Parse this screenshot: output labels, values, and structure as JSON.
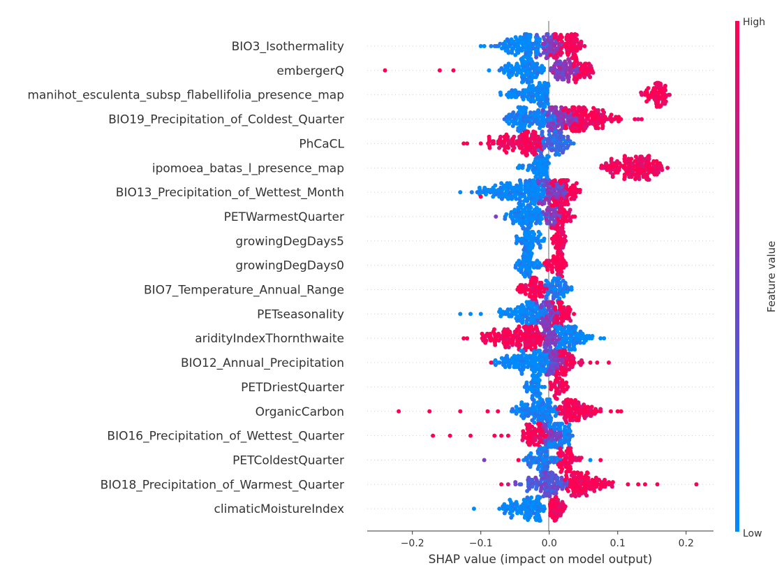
{
  "chart_data": {
    "type": "scatter",
    "subtype": "beeswarm",
    "xlabel": "SHAP value (impact on model output)",
    "xlim": [
      -0.266,
      0.24
    ],
    "xticks": [
      -0.2,
      -0.1,
      0.0,
      0.1,
      0.2
    ],
    "xtick_labels": [
      "−0.2",
      "−0.1",
      "0.0",
      "0.1",
      "0.2"
    ],
    "grid": "dotted horizontal row lines",
    "colorbar": {
      "label": "Feature value",
      "high_label": "High",
      "low_label": "Low",
      "low_color": "#008bfb",
      "mid_color": "#7c3fc4",
      "high_color": "#ff0052",
      "placement": "right"
    },
    "features": [
      {
        "name": "BIO3_Isothermality",
        "segments": [
          [
            -0.08,
            0.0,
            0,
            -0.04
          ],
          [
            -0.02,
            0.02,
            0.5,
            0.0
          ],
          [
            0.0,
            0.055,
            1,
            0.025
          ]
        ],
        "outliers": [
          [
            -0.1,
            0
          ],
          [
            -0.095,
            0
          ],
          [
            -0.085,
            0.1
          ]
        ]
      },
      {
        "name": "embergerQ",
        "segments": [
          [
            -0.08,
            -0.005,
            0,
            -0.03
          ],
          [
            0.0,
            0.05,
            0.55,
            0.02
          ],
          [
            0.035,
            0.068,
            1,
            0.045
          ]
        ],
        "outliers": [
          [
            -0.24,
            1
          ],
          [
            -0.16,
            1
          ],
          [
            -0.14,
            1
          ],
          [
            -0.088,
            0
          ]
        ]
      },
      {
        "name": "manihot_esculenta_subsp_flabellifolia_presence_map",
        "segments": [
          [
            -0.072,
            0.0,
            0,
            -0.002
          ]
        ],
        "outliers": [],
        "high_segment": [
          0.13,
          0.18,
          1,
          0.16
        ]
      },
      {
        "name": "BIO19_Precipitation_of_Coldest_Quarter",
        "segments": [
          [
            -0.07,
            0.02,
            0.05,
            -0.028
          ],
          [
            -0.01,
            0.05,
            0.5,
            0.005
          ],
          [
            0.02,
            0.11,
            1,
            0.04
          ]
        ],
        "outliers": [
          [
            0.125,
            1
          ],
          [
            0.13,
            0.8
          ],
          [
            0.135,
            1
          ]
        ]
      },
      {
        "name": "PhCaCL",
        "segments": [
          [
            -0.1,
            -0.005,
            1,
            -0.02
          ],
          [
            -0.02,
            0.038,
            0.2,
            0.012
          ]
        ],
        "outliers": [
          [
            -0.125,
            1
          ],
          [
            -0.12,
            1
          ],
          [
            -0.1,
            1
          ]
        ]
      },
      {
        "name": "ipomoea_batas_l_presence_map",
        "segments": [
          [
            -0.048,
            0.0,
            0,
            -0.002
          ],
          [
            0.065,
            0.175,
            1,
            0.13
          ]
        ],
        "outliers": []
      },
      {
        "name": "BIO13_Precipitation_of_Wettest_Month",
        "segments": [
          [
            -0.12,
            0.0,
            0,
            -0.015
          ],
          [
            -0.02,
            0.03,
            0.5,
            0.01
          ],
          [
            0.0,
            0.05,
            1,
            0.02
          ]
        ],
        "outliers": [
          [
            -0.13,
            0
          ],
          [
            -0.1,
            1
          ]
        ]
      },
      {
        "name": "PETWarmestQuarter",
        "segments": [
          [
            -0.07,
            0.0,
            0,
            -0.03
          ],
          [
            -0.01,
            0.02,
            0.5,
            0.005
          ],
          [
            0.0,
            0.038,
            1,
            0.015
          ]
        ],
        "outliers": [
          [
            -0.078,
            0.5
          ]
        ]
      },
      {
        "name": "growingDegDays5",
        "segments": [
          [
            -0.05,
            -0.005,
            0,
            -0.03
          ],
          [
            0.0,
            0.03,
            1,
            0.015
          ]
        ],
        "outliers": []
      },
      {
        "name": "growingDegDays0",
        "segments": [
          [
            -0.05,
            -0.005,
            0,
            -0.03
          ],
          [
            -0.01,
            0.028,
            1,
            0.012
          ]
        ],
        "outliers": []
      },
      {
        "name": "BIO7_Temperature_Annual_Range",
        "segments": [
          [
            -0.05,
            0.0,
            1,
            -0.02
          ],
          [
            -0.01,
            0.035,
            0.1,
            0.012
          ]
        ],
        "outliers": []
      },
      {
        "name": "PETseasonality",
        "segments": [
          [
            -0.08,
            0.0,
            0,
            -0.02
          ],
          [
            -0.02,
            0.02,
            0.5,
            0.0
          ],
          [
            0.0,
            0.038,
            1,
            0.015
          ]
        ],
        "outliers": [
          [
            -0.13,
            0
          ],
          [
            -0.115,
            0
          ],
          [
            -0.1,
            0
          ]
        ]
      },
      {
        "name": "aridityIndexThornthwaite",
        "segments": [
          [
            -0.115,
            0.0,
            1,
            -0.03
          ],
          [
            -0.015,
            0.02,
            0.5,
            0.0
          ],
          [
            0.0,
            0.07,
            0,
            0.02
          ]
        ],
        "outliers": [
          [
            -0.125,
            1
          ],
          [
            -0.12,
            1
          ],
          [
            0.075,
            0
          ],
          [
            0.08,
            0
          ]
        ]
      },
      {
        "name": "BIO12_Annual_Precipitation",
        "segments": [
          [
            -0.09,
            0.01,
            0,
            -0.01
          ],
          [
            -0.01,
            0.03,
            0.5,
            0.005
          ],
          [
            0.01,
            0.05,
            1,
            0.02
          ]
        ],
        "outliers": [
          [
            -0.085,
            1
          ],
          [
            0.06,
            1
          ],
          [
            0.07,
            1
          ],
          [
            0.087,
            1
          ]
        ]
      },
      {
        "name": "PETDriestQuarter",
        "segments": [
          [
            -0.04,
            -0.005,
            0,
            -0.02
          ],
          [
            0.0,
            0.03,
            1,
            0.012
          ]
        ],
        "outliers": []
      },
      {
        "name": "OrganicCarbon",
        "segments": [
          [
            -0.06,
            0.02,
            0.05,
            -0.005
          ],
          [
            0.01,
            0.08,
            1,
            0.03
          ]
        ],
        "outliers": [
          [
            -0.22,
            1
          ],
          [
            -0.175,
            1
          ],
          [
            -0.13,
            1
          ],
          [
            -0.09,
            1
          ],
          [
            -0.075,
            1
          ],
          [
            0.09,
            1
          ],
          [
            0.1,
            1
          ],
          [
            0.105,
            1
          ]
        ]
      },
      {
        "name": "BIO16_Precipitation_of_Wettest_Quarter",
        "segments": [
          [
            -0.05,
            0.0,
            1,
            -0.01
          ],
          [
            -0.01,
            0.02,
            0.5,
            0.005
          ],
          [
            -0.005,
            0.04,
            0.05,
            0.015
          ]
        ],
        "outliers": [
          [
            -0.17,
            1
          ],
          [
            -0.145,
            1
          ],
          [
            -0.115,
            1
          ],
          [
            -0.08,
            1
          ],
          [
            -0.07,
            1
          ],
          [
            -0.06,
            1
          ]
        ]
      },
      {
        "name": "PETColdestQuarter",
        "segments": [
          [
            -0.04,
            0.02,
            0.1,
            -0.01
          ],
          [
            0.01,
            0.05,
            1,
            0.02
          ]
        ],
        "outliers": [
          [
            -0.095,
            0.5
          ],
          [
            -0.045,
            1
          ],
          [
            0.06,
            0
          ],
          [
            0.075,
            1
          ]
        ]
      },
      {
        "name": "BIO18_Precipitation_of_Warmest_Quarter",
        "segments": [
          [
            -0.05,
            0.03,
            0.35,
            0.0
          ],
          [
            0.02,
            0.1,
            1,
            0.04
          ]
        ],
        "outliers": [
          [
            -0.07,
            1
          ],
          [
            -0.06,
            0.8
          ],
          [
            0.115,
            1
          ],
          [
            0.13,
            1
          ],
          [
            0.14,
            1
          ],
          [
            0.158,
            1
          ],
          [
            0.215,
            1
          ]
        ]
      },
      {
        "name": "climaticMoistureIndex",
        "segments": [
          [
            -0.08,
            -0.005,
            0,
            -0.02
          ],
          [
            -0.005,
            0.03,
            1,
            0.01
          ]
        ],
        "outliers": [
          [
            -0.11,
            0
          ]
        ]
      }
    ]
  }
}
